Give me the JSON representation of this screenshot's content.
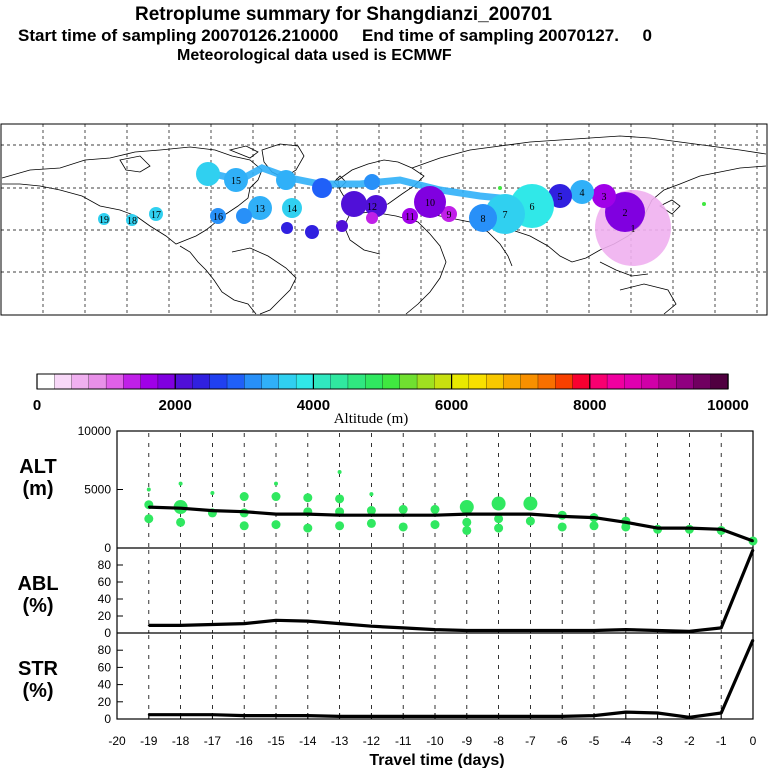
{
  "header": {
    "title": "Retroplume summary for Shangdianzi_200701",
    "subtitle": "Start time of sampling 20070126.210000     End time of sampling 20070127.     0",
    "met_line": "Meteorological data used is ECMWF"
  },
  "colorbar": {
    "tick_labels": [
      "0",
      "2000",
      "4000",
      "6000",
      "8000",
      "10000"
    ],
    "label": "Altitude (m)",
    "colors": [
      "#ffffff",
      "#f8d8f8",
      "#f0b0f0",
      "#e890e8",
      "#e060e8",
      "#c020e8",
      "#a000e8",
      "#8000e0",
      "#5010d8",
      "#3020e0",
      "#2040f0",
      "#2060f8",
      "#2890f8",
      "#30b0f8",
      "#30d0f0",
      "#30e8e8",
      "#30e8c0",
      "#30e8a0",
      "#30e880",
      "#30e860",
      "#40e840",
      "#70e030",
      "#a0e020",
      "#c8e010",
      "#e8e800",
      "#f8e000",
      "#f8c800",
      "#f8a800",
      "#f89000",
      "#f87000",
      "#f84000",
      "#f80030",
      "#f80070",
      "#f000a0",
      "#e000b0",
      "#d000a8",
      "#b00090",
      "#900080",
      "#700060",
      "#500040"
    ]
  },
  "map": {
    "day_labels": [
      {
        "t": "19",
        "v": -19
      },
      {
        "t": "18",
        "v": -18
      },
      {
        "t": "17",
        "v": -17
      },
      {
        "t": "16",
        "v": -16
      },
      {
        "t": "15",
        "v": -15
      },
      {
        "t": "14",
        "v": -14
      },
      {
        "t": "13",
        "v": -13
      },
      {
        "t": "12",
        "v": -12
      },
      {
        "t": "11",
        "v": -11
      },
      {
        "t": "10",
        "v": -10
      },
      {
        "t": "9",
        "v": -9
      },
      {
        "t": "8",
        "v": -8
      },
      {
        "t": "7",
        "v": -7
      },
      {
        "t": "6",
        "v": -6
      },
      {
        "t": "5",
        "v": -5
      },
      {
        "t": "4",
        "v": -4
      },
      {
        "t": "3",
        "v": -3
      },
      {
        "t": "2",
        "v": -2
      },
      {
        "t": "1",
        "v": -1
      }
    ]
  },
  "chart_data": [
    {
      "type": "line",
      "panel": "ALT",
      "ylabel": "ALT\n(m)",
      "ylim": [
        0,
        10000
      ],
      "y_ticks": [
        "10000",
        "5000",
        "0"
      ],
      "x": [
        -19,
        -18,
        -17,
        -16,
        -15,
        -14,
        -13,
        -12,
        -11,
        -10,
        -9,
        -8,
        -7,
        -6,
        -5,
        -4,
        -3,
        -2,
        -1,
        0
      ],
      "values": [
        3500,
        3400,
        3200,
        3100,
        2900,
        2900,
        2800,
        2800,
        2800,
        2800,
        2900,
        2900,
        2900,
        2700,
        2600,
        2200,
        1700,
        1700,
        1600,
        600
      ],
      "cluster_points": [
        {
          "x": -19,
          "y": 5000
        },
        {
          "x": -19,
          "y": 3700
        },
        {
          "x": -19,
          "y": 2500
        },
        {
          "x": -18,
          "y": 5500
        },
        {
          "x": -18,
          "y": 3500
        },
        {
          "x": -18,
          "y": 2200
        },
        {
          "x": -17,
          "y": 4700
        },
        {
          "x": -17,
          "y": 3000
        },
        {
          "x": -16,
          "y": 4400
        },
        {
          "x": -16,
          "y": 3000
        },
        {
          "x": -16,
          "y": 1900
        },
        {
          "x": -15,
          "y": 5500
        },
        {
          "x": -15,
          "y": 4400
        },
        {
          "x": -15,
          "y": 2000
        },
        {
          "x": -14,
          "y": 4300
        },
        {
          "x": -14,
          "y": 3100
        },
        {
          "x": -14,
          "y": 1700
        },
        {
          "x": -13,
          "y": 6500
        },
        {
          "x": -13,
          "y": 4200
        },
        {
          "x": -13,
          "y": 3100
        },
        {
          "x": -13,
          "y": 1900
        },
        {
          "x": -12,
          "y": 4600
        },
        {
          "x": -12,
          "y": 3200
        },
        {
          "x": -12,
          "y": 2100
        },
        {
          "x": -11,
          "y": 3300
        },
        {
          "x": -11,
          "y": 1800
        },
        {
          "x": -10,
          "y": 3300
        },
        {
          "x": -10,
          "y": 2000
        },
        {
          "x": -9,
          "y": 3500
        },
        {
          "x": -9,
          "y": 2200
        },
        {
          "x": -9,
          "y": 1500
        },
        {
          "x": -8,
          "y": 3800
        },
        {
          "x": -8,
          "y": 2500
        },
        {
          "x": -8,
          "y": 1700
        },
        {
          "x": -7,
          "y": 3800
        },
        {
          "x": -7,
          "y": 2300
        },
        {
          "x": -6,
          "y": 2800
        },
        {
          "x": -6,
          "y": 1800
        },
        {
          "x": -5,
          "y": 2600
        },
        {
          "x": -5,
          "y": 1900
        },
        {
          "x": -4,
          "y": 2300
        },
        {
          "x": -4,
          "y": 1800
        },
        {
          "x": -3,
          "y": 1600
        },
        {
          "x": -2,
          "y": 1600
        },
        {
          "x": -1,
          "y": 1500
        },
        {
          "x": 0,
          "y": 600
        }
      ]
    },
    {
      "type": "line",
      "panel": "ABL",
      "ylabel": "ABL\n(%)",
      "ylim": [
        0,
        100
      ],
      "y_ticks": [
        "0",
        "20",
        "40",
        "60",
        "80"
      ],
      "x": [
        -19,
        -18,
        -17,
        -16,
        -15,
        -14,
        -13,
        -12,
        -11,
        -10,
        -9,
        -8,
        -7,
        -6,
        -5,
        -4,
        -3,
        -2,
        -1,
        0
      ],
      "values": [
        9,
        9,
        10,
        11,
        15,
        14,
        11,
        8,
        6,
        4,
        3,
        3,
        3,
        3,
        3,
        4,
        3,
        2,
        6,
        98
      ]
    },
    {
      "type": "line",
      "panel": "STR",
      "ylabel": "STR\n(%)",
      "ylim": [
        0,
        100
      ],
      "y_ticks": [
        "0",
        "20",
        "40",
        "60",
        "80"
      ],
      "x": [
        -19,
        -18,
        -17,
        -16,
        -15,
        -14,
        -13,
        -12,
        -11,
        -10,
        -9,
        -8,
        -7,
        -6,
        -5,
        -4,
        -3,
        -2,
        -1,
        0
      ],
      "values": [
        5,
        5,
        5,
        4,
        4,
        4,
        3,
        3,
        3,
        3,
        3,
        3,
        3,
        3,
        4,
        8,
        7,
        2,
        7,
        92
      ],
      "xlabel": "Travel time (days)",
      "x_ticks": [
        "-20",
        "-19",
        "-18",
        "-17",
        "-16",
        "-15",
        "-14",
        "-13",
        "-12",
        "-11",
        "-10",
        "-9",
        "-8",
        "-7",
        "-6",
        "-5",
        "-4",
        "-3",
        "-2",
        "-1",
        "0"
      ]
    }
  ]
}
